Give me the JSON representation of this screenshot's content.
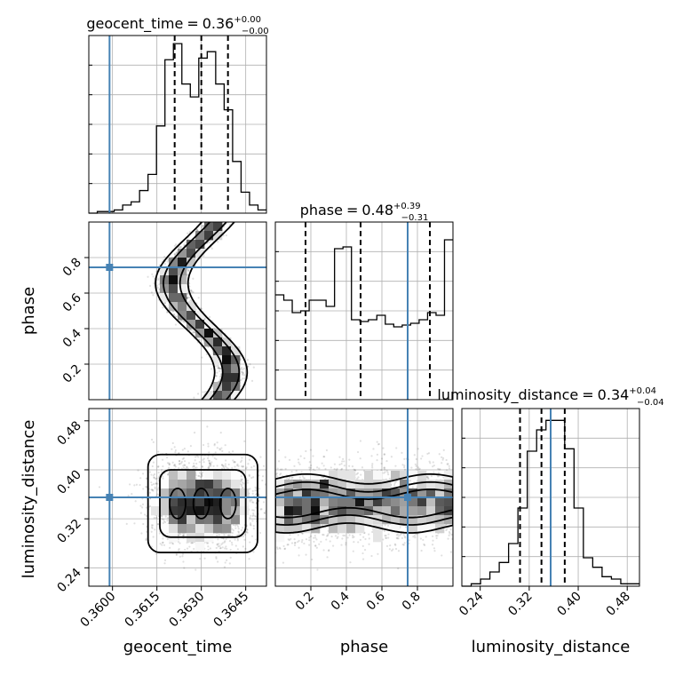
{
  "chart_data": {
    "type": "corner",
    "parameters": [
      "geocent_time",
      "phase",
      "luminosity_distance"
    ],
    "truth": {
      "geocent_time": 0.3599,
      "phase": 0.745,
      "luminosity_distance": 0.355
    },
    "colors": {
      "truth": "#4682b4",
      "hist": "#000000",
      "grid": "#b0b0b0"
    },
    "grid": true,
    "panels": {
      "geocent_time": {
        "title": {
          "name": "geocent_time",
          "value": "0.36",
          "plus": "+0.00",
          "minus": "−0.00"
        },
        "xlim": [
          0.3592,
          0.3652
        ],
        "xticks": [
          0.36,
          0.3615,
          0.363,
          0.3645
        ],
        "xtick_labels": [
          "0.3600",
          "0.3615",
          "0.3630",
          "0.3645"
        ],
        "quantiles": [
          0.3621,
          0.363,
          0.3639
        ],
        "hist": [
          0,
          1,
          1,
          2,
          5,
          7,
          14,
          24,
          54,
          95,
          105,
          80,
          72,
          96,
          100,
          80,
          64,
          32,
          13,
          5,
          2
        ],
        "hist_ylim": [
          0,
          110
        ]
      },
      "phase": {
        "title": {
          "name": "phase",
          "value": "0.48",
          "plus": "+0.39",
          "minus": "−0.31"
        },
        "xlim": [
          0.0,
          1.0
        ],
        "xticks": [
          0.2,
          0.4,
          0.6,
          0.8
        ],
        "xtick_labels": [
          "0.2",
          "0.4",
          "0.6",
          "0.8"
        ],
        "yticks": [
          0.2,
          0.4,
          0.6,
          0.8
        ],
        "ytick_labels": [
          "0.2",
          "0.4",
          "0.6",
          "0.8"
        ],
        "quantiles": [
          0.17,
          0.48,
          0.87
        ],
        "hist": [
          118,
          112,
          98,
          100,
          112,
          112,
          105,
          170,
          172,
          90,
          88,
          90,
          95,
          85,
          82,
          84,
          86,
          90,
          98,
          95,
          180
        ],
        "hist_ylim": [
          0,
          200
        ]
      },
      "luminosity_distance": {
        "title": {
          "name": "luminosity_distance",
          "value": "0.34",
          "plus": "+0.04",
          "minus": "−0.04"
        },
        "xlim": [
          0.21,
          0.5
        ],
        "xticks": [
          0.24,
          0.32,
          0.4,
          0.48
        ],
        "xtick_labels": [
          "0.24",
          "0.32",
          "0.40",
          "0.48"
        ],
        "yticks": [
          0.24,
          0.32,
          0.4,
          0.48
        ],
        "ytick_labels": [
          "0.24",
          "0.32",
          "0.40",
          "0.48"
        ],
        "quantiles": [
          0.305,
          0.34,
          0.378
        ],
        "hist": [
          0,
          1,
          3,
          6,
          10,
          18,
          33,
          57,
          66,
          70,
          70,
          58,
          33,
          12,
          8,
          4,
          3,
          1,
          1
        ],
        "hist_ylim": [
          0,
          75
        ]
      }
    }
  }
}
